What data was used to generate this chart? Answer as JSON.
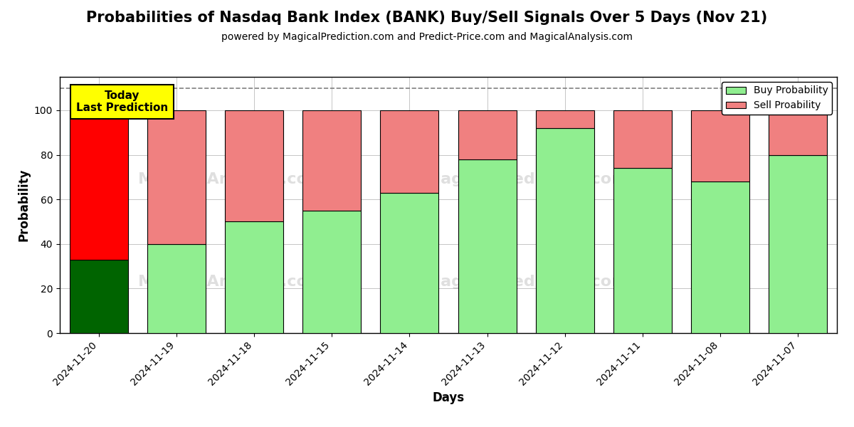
{
  "title": "Probabilities of Nasdaq Bank Index (BANK) Buy/Sell Signals Over 5 Days (Nov 21)",
  "subtitle": "powered by MagicalPrediction.com and Predict-Price.com and MagicalAnalysis.com",
  "xlabel": "Days",
  "ylabel": "Probability",
  "categories": [
    "2024-11-20",
    "2024-11-19",
    "2024-11-18",
    "2024-11-15",
    "2024-11-14",
    "2024-11-13",
    "2024-11-12",
    "2024-11-11",
    "2024-11-08",
    "2024-11-07"
  ],
  "buy_values": [
    33,
    40,
    50,
    55,
    63,
    78,
    92,
    74,
    68,
    80
  ],
  "sell_values": [
    67,
    60,
    50,
    45,
    37,
    22,
    8,
    26,
    32,
    20
  ],
  "today_buy_color": "#006400",
  "today_sell_color": "#FF0000",
  "buy_color": "#90EE90",
  "sell_color": "#F08080",
  "today_annotation_text": "Today\nLast Prediction",
  "today_annotation_bg": "#FFFF00",
  "ylim": [
    0,
    115
  ],
  "yticks": [
    0,
    20,
    40,
    60,
    80,
    100
  ],
  "dashed_line_y": 110,
  "legend_buy_label": "Buy Probability",
  "legend_sell_label": "Sell Proability",
  "title_fontsize": 15,
  "subtitle_fontsize": 10,
  "axis_label_fontsize": 12,
  "tick_fontsize": 10,
  "background_color": "#ffffff",
  "grid_color": "#bbbbbb",
  "bar_width": 0.75
}
